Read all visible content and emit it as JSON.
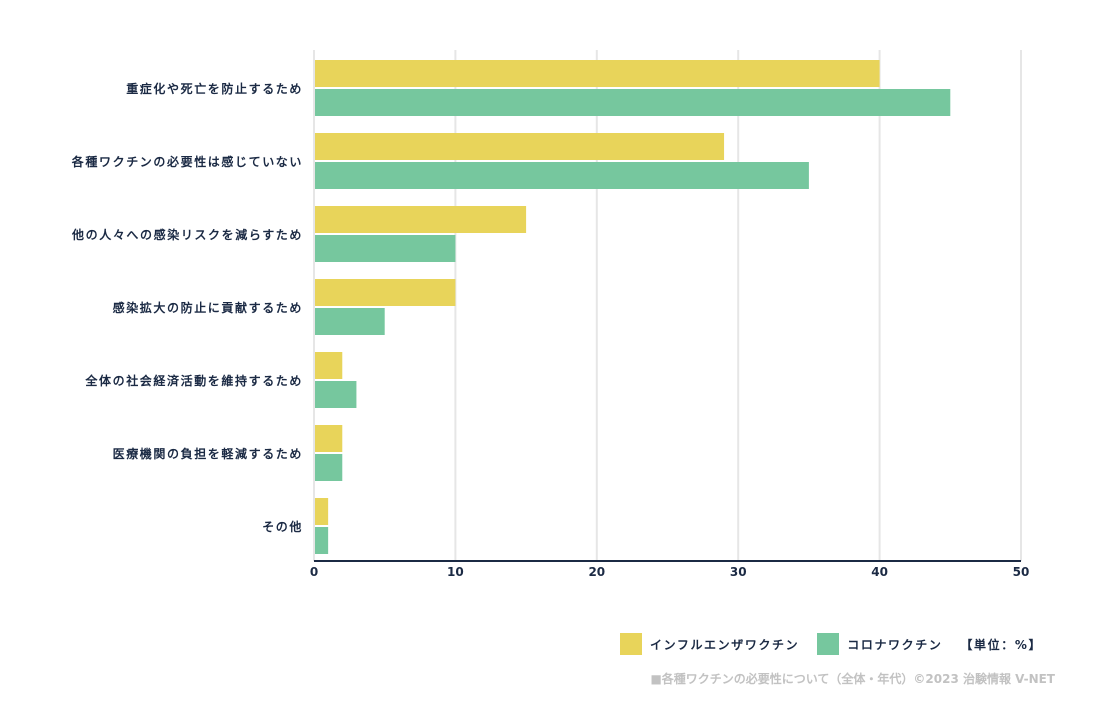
{
  "chart_data": {
    "type": "bar",
    "orientation": "horizontal",
    "categories": [
      "重症化や死亡を防止するため",
      "各種ワクチンの必要性は感じていない",
      "他の人々への感染リスクを減らすため",
      "感染拡大の防止に貢献するため",
      "全体の社会経済活動を維持するため",
      "医療機関の負担を軽減するため",
      "その他"
    ],
    "series": [
      {
        "name": "インフルエンザワクチン",
        "color": "#e8d45a",
        "values": [
          40,
          29,
          15,
          10,
          2,
          2,
          1
        ]
      },
      {
        "name": "コロナワクチン",
        "color": "#76c79e",
        "values": [
          45,
          35,
          10,
          5,
          3,
          2,
          1
        ]
      }
    ],
    "xlim": [
      0,
      50
    ],
    "xticks": [
      0,
      10,
      20,
      30,
      40,
      50
    ],
    "grid": true,
    "legend_position": "bottom-right"
  },
  "legend": {
    "unit_label": "【単位：%】"
  },
  "caption": "■各種ワクチンの必要性について（全体・年代）©2023 治験情報 V-NET"
}
